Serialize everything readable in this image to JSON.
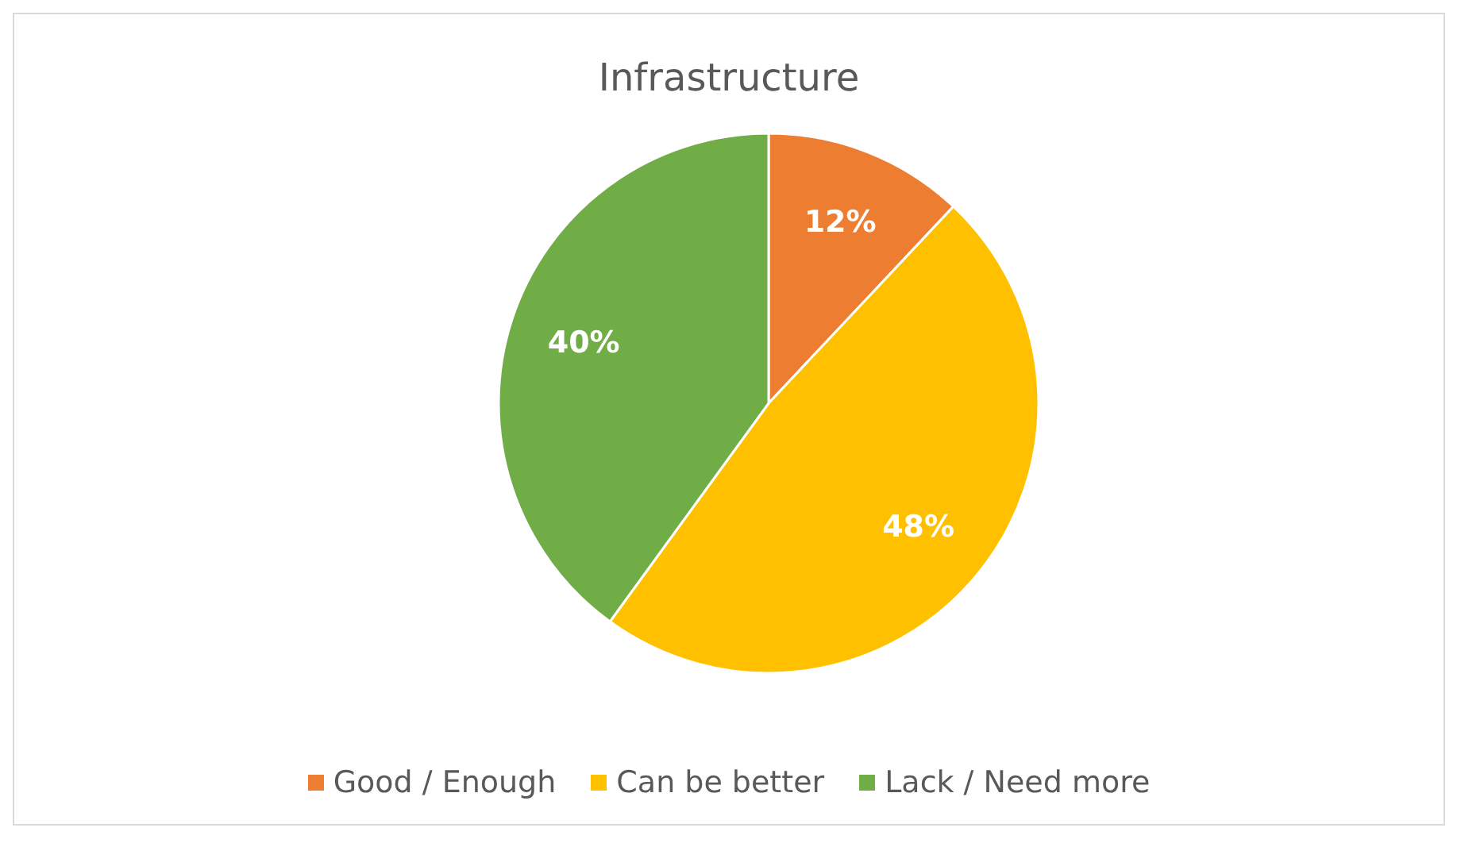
{
  "chart_data": {
    "type": "pie",
    "title": "Infrastructure",
    "categories": [
      "Good / Enough",
      "Can be better",
      "Lack / Need more"
    ],
    "values": [
      12,
      48,
      40
    ],
    "colors": [
      "#ed7d31",
      "#ffc000",
      "#70ad47"
    ],
    "value_labels": [
      "12%",
      "48%",
      "40%"
    ],
    "legend": "bottom"
  }
}
